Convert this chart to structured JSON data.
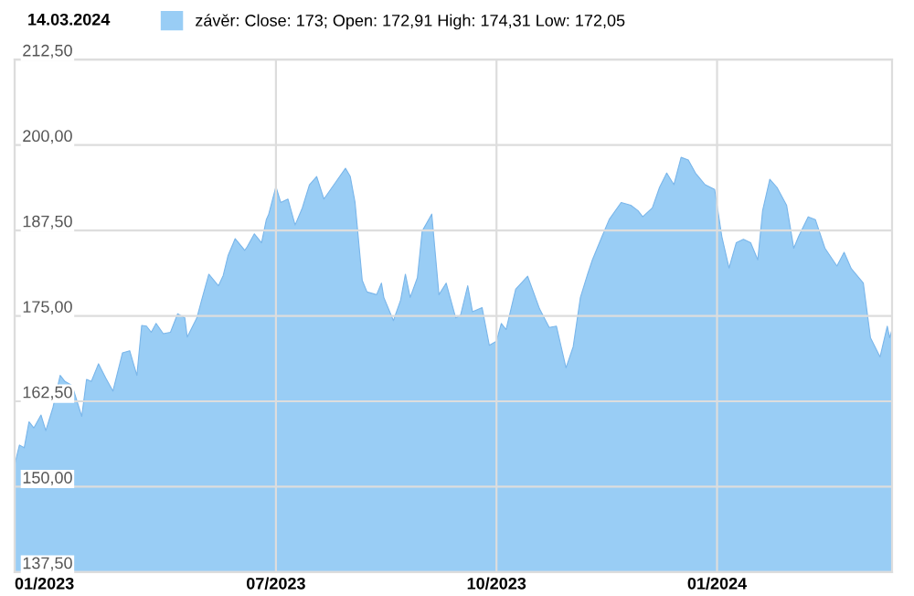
{
  "chart_data": {
    "type": "area",
    "title": "14.03.2024",
    "x": [
      "2023-03-14",
      "2023-03-16",
      "2023-03-18",
      "2023-03-20",
      "2023-03-22",
      "2023-03-25",
      "2023-03-27",
      "2023-03-30",
      "2023-04-02",
      "2023-04-04",
      "2023-04-07",
      "2023-04-11",
      "2023-04-13",
      "2023-04-15",
      "2023-04-18",
      "2023-04-21",
      "2023-04-24",
      "2023-04-28",
      "2023-05-01",
      "2023-05-04",
      "2023-05-06",
      "2023-05-08",
      "2023-05-10",
      "2023-05-12",
      "2023-05-15",
      "2023-05-18",
      "2023-05-21",
      "2023-05-24",
      "2023-05-25",
      "2023-05-29",
      "2023-05-31",
      "2023-06-03",
      "2023-06-07",
      "2023-06-09",
      "2023-06-11",
      "2023-06-14",
      "2023-06-18",
      "2023-06-19",
      "2023-06-22",
      "2023-06-25",
      "2023-06-27",
      "2023-06-28",
      "2023-07-01",
      "2023-07-03",
      "2023-07-06",
      "2023-07-09",
      "2023-07-12",
      "2023-07-15",
      "2023-07-18",
      "2023-07-21",
      "2023-07-26",
      "2023-07-30",
      "2023-08-01",
      "2023-08-03",
      "2023-08-06",
      "2023-08-08",
      "2023-08-12",
      "2023-08-14",
      "2023-08-15",
      "2023-08-19",
      "2023-08-22",
      "2023-08-24",
      "2023-08-26",
      "2023-08-29",
      "2023-08-31",
      "2023-09-04",
      "2023-09-07",
      "2023-09-10",
      "2023-09-14",
      "2023-09-16",
      "2023-09-19",
      "2023-09-21",
      "2023-09-25",
      "2023-09-28",
      "2023-10-01",
      "2023-10-03",
      "2023-10-05",
      "2023-10-09",
      "2023-10-14",
      "2023-10-19",
      "2023-10-23",
      "2023-10-26",
      "2023-10-30",
      "2023-11-02",
      "2023-11-05",
      "2023-11-08",
      "2023-11-10",
      "2023-11-14",
      "2023-11-17",
      "2023-11-22",
      "2023-11-26",
      "2023-11-29",
      "2023-12-01",
      "2023-12-05",
      "2023-12-08",
      "2023-12-11",
      "2023-12-14",
      "2023-12-17",
      "2023-12-20",
      "2023-12-23",
      "2023-12-27",
      "2023-12-31",
      "2024-01-03",
      "2024-01-06",
      "2024-01-09",
      "2024-01-12",
      "2024-01-15",
      "2024-01-18",
      "2024-01-20",
      "2024-01-23",
      "2024-01-26",
      "2024-01-30",
      "2024-02-02",
      "2024-02-04",
      "2024-02-08",
      "2024-02-11",
      "2024-02-15",
      "2024-02-20",
      "2024-02-23",
      "2024-02-26",
      "2024-03-02",
      "2024-03-05",
      "2024-03-09",
      "2024-03-12",
      "2024-03-13",
      "2024-03-14"
    ],
    "series": [
      {
        "name": "závěr: Close: 173; Open: 172,91 High: 174,31 Low: 172,05",
        "color": "#99cdf5",
        "values": [
          153.2,
          156.1,
          155.7,
          159.5,
          158.6,
          160.5,
          158.2,
          161.6,
          166.3,
          165.4,
          164.8,
          160.3,
          165.7,
          165.4,
          168.0,
          165.9,
          164.0,
          169.6,
          169.9,
          166.3,
          173.6,
          173.5,
          172.6,
          173.9,
          172.4,
          172.6,
          175.3,
          174.7,
          171.9,
          174.7,
          177.3,
          181.1,
          179.4,
          180.9,
          183.8,
          186.3,
          184.6,
          185.1,
          187.0,
          185.7,
          189.1,
          189.9,
          193.9,
          191.6,
          192.1,
          188.3,
          190.8,
          194.2,
          195.4,
          192.1,
          194.6,
          196.6,
          195.4,
          191.6,
          180.2,
          178.5,
          178.1,
          179.8,
          177.7,
          174.3,
          177.3,
          181.1,
          177.7,
          180.6,
          187.4,
          189.9,
          178.1,
          179.8,
          174.7,
          175.1,
          179.4,
          175.6,
          176.2,
          170.7,
          171.3,
          173.9,
          173.0,
          178.9,
          180.8,
          176.0,
          173.3,
          173.5,
          167.4,
          170.5,
          177.7,
          181.1,
          183.2,
          186.6,
          189.1,
          191.6,
          191.2,
          190.4,
          189.5,
          190.8,
          193.8,
          195.9,
          194.2,
          198.2,
          197.8,
          195.9,
          194.2,
          193.5,
          186.6,
          182.0,
          185.7,
          186.2,
          185.7,
          183.2,
          190.4,
          195.0,
          193.8,
          191.2,
          184.9,
          186.6,
          189.5,
          189.1,
          184.9,
          182.3,
          184.3,
          181.9,
          179.8,
          171.8,
          169.0,
          173.5,
          171.8,
          173.0
        ]
      }
    ],
    "xlim": [
      "2023-03-14",
      "2024-03-14"
    ],
    "xticks": [
      {
        "value": "2023-03-14",
        "label": "01/2023"
      },
      {
        "value": "2023-07-01",
        "label": "07/2023"
      },
      {
        "value": "2023-10-01",
        "label": "10/2023"
      },
      {
        "value": "2024-01-01",
        "label": "01/2024"
      }
    ],
    "ylim": [
      137.5,
      212.5
    ],
    "yticks": [
      {
        "value": 137.5,
        "label": "137,50"
      },
      {
        "value": 150,
        "label": "150,00"
      },
      {
        "value": 162.5,
        "label": "162,50"
      },
      {
        "value": 175,
        "label": "175,00"
      },
      {
        "value": 187.5,
        "label": "187,50"
      },
      {
        "value": 200,
        "label": "200,00"
      },
      {
        "value": 212.5,
        "label": "212,50"
      }
    ],
    "grid": true,
    "legend": "top left"
  }
}
